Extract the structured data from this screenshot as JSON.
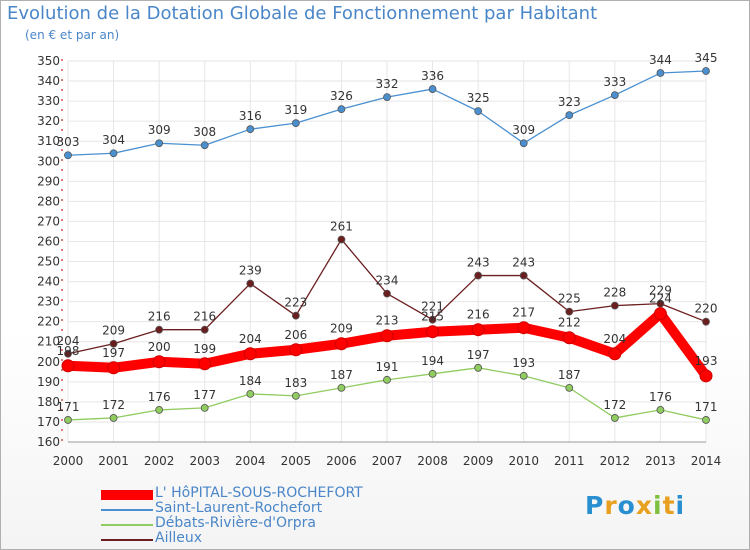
{
  "title": "Evolution de la Dotation Globale de Fonctionnement par Habitant",
  "subtitle": "(en € et par an)",
  "logo": {
    "text": "Proxiti",
    "colors": [
      "#2a8fd0",
      "#e8a020",
      "#2a8fd0",
      "#e8a020",
      "#80c040",
      "#e8a020",
      "#2a8fd0"
    ]
  },
  "chart_data": {
    "type": "line",
    "x": [
      "2000",
      "2001",
      "2002",
      "2003",
      "2004",
      "2005",
      "2006",
      "2007",
      "2008",
      "2009",
      "2010",
      "2011",
      "2012",
      "2013",
      "2014"
    ],
    "ylim": [
      160,
      350
    ],
    "yticks": [
      160,
      170,
      180,
      190,
      200,
      210,
      220,
      230,
      240,
      250,
      260,
      270,
      280,
      290,
      300,
      310,
      320,
      330,
      340,
      350
    ],
    "grid": true,
    "legend_position": "bottom-left",
    "series": [
      {
        "name": "L' HôPITAL-SOUS-ROCHEFORT",
        "color": "#ff0000",
        "emphasis": true,
        "values": [
          198,
          197,
          200,
          199,
          204,
          206,
          209,
          213,
          215,
          216,
          217,
          212,
          204,
          224,
          193
        ]
      },
      {
        "name": "Saint-Laurent-Rochefort",
        "color": "#4a90d0",
        "values": [
          303,
          304,
          309,
          308,
          316,
          319,
          326,
          332,
          336,
          325,
          309,
          323,
          333,
          344,
          345
        ]
      },
      {
        "name": "Débats-Rivière-d'Orpra",
        "color": "#90cc60",
        "values": [
          171,
          172,
          176,
          177,
          184,
          183,
          187,
          191,
          194,
          197,
          193,
          187,
          172,
          176,
          171
        ]
      },
      {
        "name": "Ailleux",
        "color": "#6b1e1e",
        "values": [
          204,
          209,
          216,
          216,
          239,
          223,
          261,
          234,
          221,
          243,
          243,
          225,
          228,
          229,
          220
        ]
      }
    ]
  }
}
